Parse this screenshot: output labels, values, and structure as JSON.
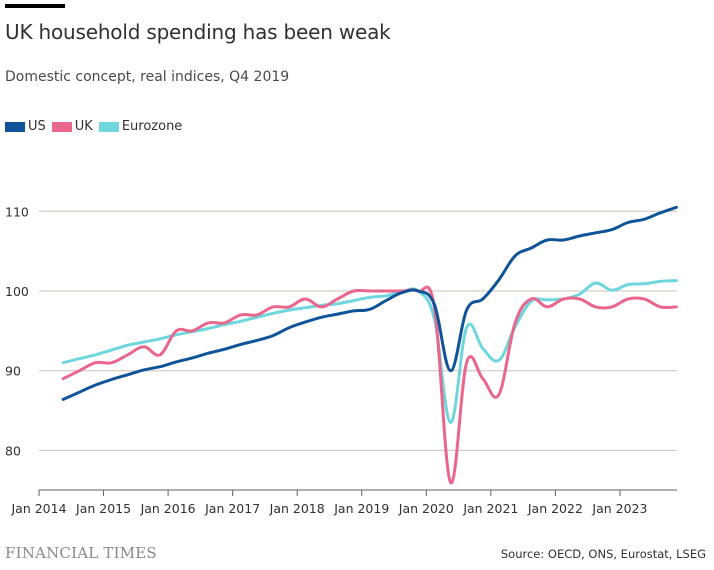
{
  "title": "UK household spending has been weak",
  "subtitle": "Domestic concept, real indices, Q4 2019",
  "legend": [
    {
      "name": "US",
      "color": "#0f5499"
    },
    {
      "name": "UK",
      "color": "#e9678c"
    },
    {
      "name": "Eurozone",
      "color": "#6fd6dd"
    }
  ],
  "footer": {
    "brand": "FINANCIAL TIMES",
    "source": "Source: OECD, ONS, Eurostat, LSEG"
  },
  "chart_data": {
    "type": "line",
    "title": "UK household spending has been weak",
    "subtitle": "Domestic concept, real indices, Q4 2019",
    "xlabel": "",
    "ylabel": "",
    "ylim": [
      75,
      113
    ],
    "yticks": [
      80,
      90,
      100,
      110
    ],
    "xticks": [
      "Jan 2014",
      "Jan 2015",
      "Jan 2016",
      "Jan 2017",
      "Jan 2018",
      "Jan 2019",
      "Jan 2020",
      "Jan 2021",
      "Jan 2022",
      "Jan 2023"
    ],
    "xrange": [
      "2014-01",
      "2023-12"
    ],
    "grid": true,
    "legend_position": "top-left",
    "x": [
      "2014Q2",
      "2014Q3",
      "2014Q4",
      "2015Q1",
      "2015Q2",
      "2015Q3",
      "2015Q4",
      "2016Q1",
      "2016Q2",
      "2016Q3",
      "2016Q4",
      "2017Q1",
      "2017Q2",
      "2017Q3",
      "2017Q4",
      "2018Q1",
      "2018Q2",
      "2018Q3",
      "2018Q4",
      "2019Q1",
      "2019Q2",
      "2019Q3",
      "2019Q4",
      "2020Q1",
      "2020Q2",
      "2020Q3",
      "2020Q4",
      "2021Q1",
      "2021Q2",
      "2021Q3",
      "2021Q4",
      "2022Q1",
      "2022Q2",
      "2022Q3",
      "2022Q4",
      "2023Q1",
      "2023Q2",
      "2023Q3",
      "2023Q4"
    ],
    "series": [
      {
        "name": "US",
        "color": "#0f5499",
        "values": [
          86.4,
          87.3,
          88.2,
          88.9,
          89.5,
          90.1,
          90.5,
          91.1,
          91.6,
          92.2,
          92.7,
          93.3,
          93.8,
          94.4,
          95.4,
          96.1,
          96.7,
          97.1,
          97.5,
          97.7,
          98.8,
          99.8,
          100.0,
          98.3,
          90.0,
          97.6,
          99.0,
          101.4,
          104.4,
          105.4,
          106.4,
          106.4,
          106.9,
          107.3,
          107.7,
          108.6,
          109.0,
          109.8,
          110.5
        ]
      },
      {
        "name": "UK",
        "color": "#e9678c",
        "values": [
          89.0,
          90.0,
          91.0,
          91.0,
          92.0,
          93.0,
          92.0,
          95.0,
          95.0,
          96.0,
          96.0,
          97.0,
          97.0,
          98.0,
          98.0,
          99.0,
          98.0,
          99.0,
          100.0,
          100.0,
          100.0,
          100.0,
          100.0,
          98.0,
          76.0,
          91.0,
          89.0,
          87.0,
          96.0,
          99.0,
          98.0,
          99.0,
          99.0,
          98.0,
          98.0,
          99.0,
          99.0,
          98.0,
          98.0
        ]
      },
      {
        "name": "Eurozone",
        "color": "#6fd6dd",
        "values": [
          91.0,
          91.5,
          92.0,
          92.6,
          93.2,
          93.6,
          94.0,
          94.5,
          94.9,
          95.3,
          95.8,
          96.2,
          96.7,
          97.2,
          97.6,
          97.9,
          98.2,
          98.4,
          98.8,
          99.2,
          99.4,
          99.9,
          100.0,
          96.5,
          83.5,
          95.4,
          92.8,
          91.3,
          95.5,
          98.7,
          98.9,
          99.0,
          99.6,
          101.0,
          100.1,
          100.8,
          100.9,
          101.2,
          101.3
        ]
      }
    ]
  }
}
